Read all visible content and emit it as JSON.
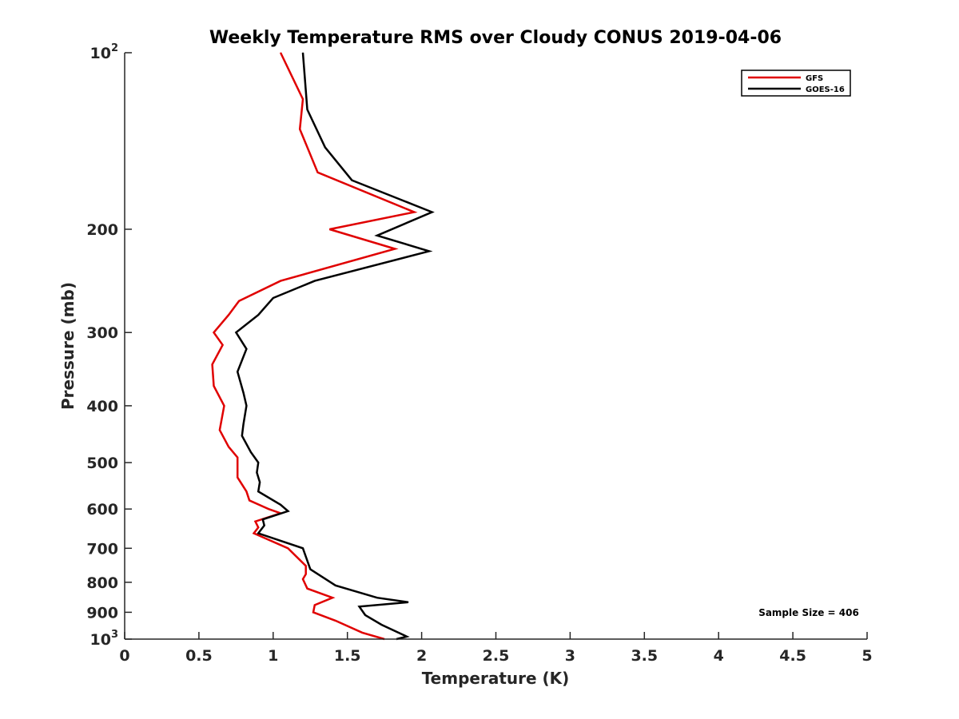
{
  "chart_data": {
    "type": "line",
    "title": "Weekly Temperature RMS over Cloudy CONUS 2019-04-06",
    "xlabel": "Temperature (K)",
    "ylabel": "Pressure (mb)",
    "xlim": [
      0,
      5
    ],
    "ylim": [
      100,
      1000
    ],
    "y_scale": "log",
    "y_reversed": true,
    "grid": false,
    "legend_position": "top-right",
    "x_ticks": [
      0,
      0.5,
      1,
      1.5,
      2,
      2.5,
      3,
      3.5,
      4,
      4.5,
      5
    ],
    "x_tick_labels": [
      "0",
      "0.5",
      "1",
      "1.5",
      "2",
      "2.5",
      "3",
      "3.5",
      "4",
      "4.5",
      "5"
    ],
    "y_ticks": [
      100,
      200,
      300,
      400,
      500,
      600,
      700,
      800,
      900,
      1000
    ],
    "y_tick_labels": [
      {
        "base": "10",
        "sup": "2"
      },
      {
        "base": "200",
        "sup": ""
      },
      {
        "base": "300",
        "sup": ""
      },
      {
        "base": "400",
        "sup": ""
      },
      {
        "base": "500",
        "sup": ""
      },
      {
        "base": "600",
        "sup": ""
      },
      {
        "base": "700",
        "sup": ""
      },
      {
        "base": "800",
        "sup": ""
      },
      {
        "base": "900",
        "sup": ""
      },
      {
        "base": "10",
        "sup": "3"
      }
    ],
    "annotation": "Sample Size = 406",
    "series": [
      {
        "name": "GFS",
        "color": "#e00000",
        "points": [
          [
            1.05,
            100
          ],
          [
            1.2,
            120
          ],
          [
            1.18,
            135
          ],
          [
            1.3,
            160
          ],
          [
            1.95,
            187
          ],
          [
            1.38,
            200
          ],
          [
            1.82,
            216
          ],
          [
            1.05,
            245
          ],
          [
            0.77,
            265
          ],
          [
            0.7,
            280
          ],
          [
            0.6,
            300
          ],
          [
            0.66,
            315
          ],
          [
            0.59,
            340
          ],
          [
            0.6,
            370
          ],
          [
            0.67,
            400
          ],
          [
            0.64,
            440
          ],
          [
            0.7,
            470
          ],
          [
            0.76,
            490
          ],
          [
            0.76,
            530
          ],
          [
            0.82,
            560
          ],
          [
            0.84,
            580
          ],
          [
            0.97,
            600
          ],
          [
            1.05,
            610
          ],
          [
            0.88,
            630
          ],
          [
            0.9,
            645
          ],
          [
            0.87,
            660
          ],
          [
            1.1,
            700
          ],
          [
            1.22,
            750
          ],
          [
            1.22,
            775
          ],
          [
            1.2,
            790
          ],
          [
            1.23,
            820
          ],
          [
            1.4,
            850
          ],
          [
            1.28,
            875
          ],
          [
            1.27,
            900
          ],
          [
            1.42,
            930
          ],
          [
            1.6,
            975
          ],
          [
            1.75,
            1000
          ]
        ]
      },
      {
        "name": "GOES-16",
        "color": "#000000",
        "points": [
          [
            1.2,
            100
          ],
          [
            1.23,
            125
          ],
          [
            1.35,
            145
          ],
          [
            1.53,
            165
          ],
          [
            2.07,
            187
          ],
          [
            1.7,
            205
          ],
          [
            2.05,
            218
          ],
          [
            1.28,
            245
          ],
          [
            1.0,
            262
          ],
          [
            0.9,
            280
          ],
          [
            0.75,
            300
          ],
          [
            0.82,
            320
          ],
          [
            0.76,
            350
          ],
          [
            0.8,
            380
          ],
          [
            0.82,
            400
          ],
          [
            0.8,
            430
          ],
          [
            0.79,
            450
          ],
          [
            0.85,
            480
          ],
          [
            0.9,
            500
          ],
          [
            0.89,
            520
          ],
          [
            0.91,
            540
          ],
          [
            0.9,
            560
          ],
          [
            1.05,
            590
          ],
          [
            1.1,
            605
          ],
          [
            0.93,
            625
          ],
          [
            0.94,
            640
          ],
          [
            0.9,
            660
          ],
          [
            1.2,
            700
          ],
          [
            1.25,
            760
          ],
          [
            1.42,
            810
          ],
          [
            1.7,
            850
          ],
          [
            1.91,
            865
          ],
          [
            1.58,
            880
          ],
          [
            1.62,
            910
          ],
          [
            1.73,
            945
          ],
          [
            1.9,
            990
          ],
          [
            1.83,
            1000
          ]
        ]
      }
    ]
  }
}
